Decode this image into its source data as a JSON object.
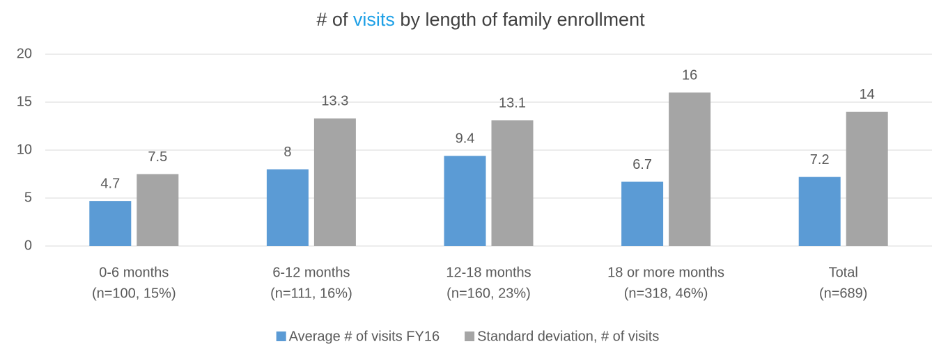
{
  "chart_data": {
    "type": "bar",
    "title": [
      {
        "text": "# of "
      },
      {
        "text": "visits",
        "color": "#1ea0e6"
      },
      {
        "text": " by length of family enrollment"
      }
    ],
    "categories": [
      [
        "0-6 months",
        "(n=100, 15%)"
      ],
      [
        "6-12 months",
        "(n=111, 16%)"
      ],
      [
        "12-18 months",
        "(n=160, 23%)"
      ],
      [
        "18 or more months",
        "(n=318, 46%)"
      ],
      [
        "Total",
        "(n=689)"
      ]
    ],
    "series": [
      {
        "name": "Average # of visits FY16",
        "color": "#5b9bd5",
        "values": [
          4.7,
          8,
          9.4,
          6.7,
          7.2
        ]
      },
      {
        "name": "Standard deviation, # of visits",
        "color": "#a5a5a5",
        "values": [
          7.5,
          13.3,
          13.1,
          16,
          14
        ]
      }
    ],
    "ylim": [
      0,
      20
    ],
    "yticks": [
      0,
      5,
      10,
      15,
      20
    ],
    "grid": true,
    "legend": "bottom"
  }
}
